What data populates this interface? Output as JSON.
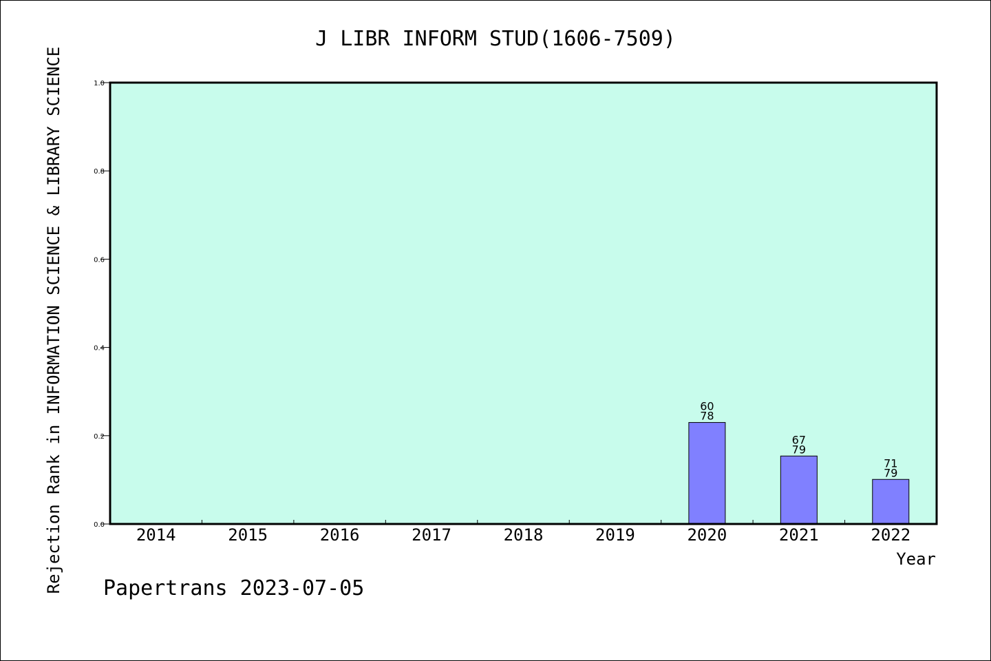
{
  "chart_data": {
    "type": "bar",
    "title": "J LIBR INFORM STUD(1606-7509)",
    "xlabel": "Year",
    "ylabel": "Rejection Rank in INFORMATION SCIENCE & LIBRARY SCIENCE",
    "categories": [
      "2014",
      "2015",
      "2016",
      "2017",
      "2018",
      "2019",
      "2020",
      "2021",
      "2022"
    ],
    "values": [
      null,
      null,
      null,
      null,
      null,
      null,
      0.23,
      0.154,
      0.101
    ],
    "bar_labels": [
      null,
      null,
      null,
      null,
      null,
      null,
      {
        "top": "60",
        "bottom": "78"
      },
      {
        "top": "67",
        "bottom": "79"
      },
      {
        "top": "71",
        "bottom": "79"
      }
    ],
    "ylim": [
      0,
      1.0
    ],
    "yticks": [
      "0.0",
      "0.2",
      "0.4",
      "0.6",
      "0.8",
      "1.0"
    ],
    "grid": false,
    "colors": {
      "plot_background": "#c8fcec",
      "bar_fill": "#8080ff",
      "bar_stroke": "#000000"
    }
  },
  "footer": {
    "credit": "Papertrans 2023-07-05"
  }
}
